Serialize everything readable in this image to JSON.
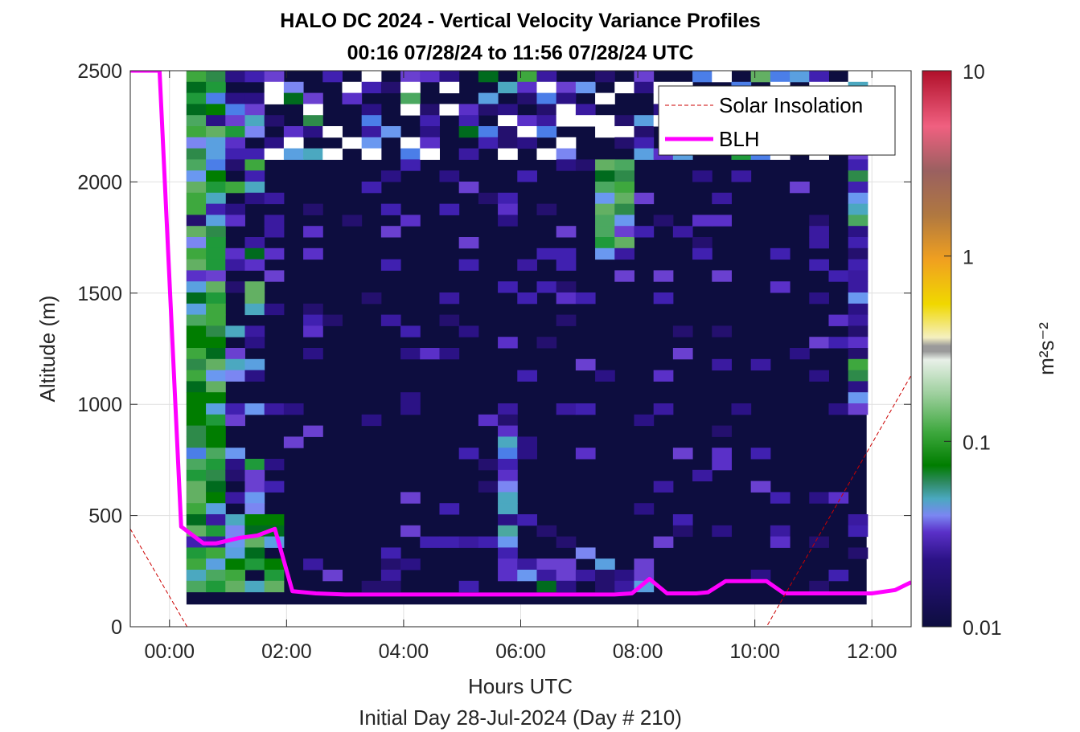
{
  "chart_data": {
    "type": "heatmap",
    "title": "HALO DC 2024 - Vertical Velocity Variance Profiles",
    "subtitle": "00:16 07/28/24 to 11:56 07/28/24  UTC",
    "xlabel": "Hours UTC",
    "xlabel2": "Initial Day 28-Jul-2024 (Day # 210)",
    "ylabel": "Altitude (m)",
    "colorbar_label": "m²s⁻²",
    "x_unit": "hours UTC",
    "xlim": [
      -0.67,
      12.67
    ],
    "ylim": [
      0,
      2500
    ],
    "xticks": [
      0,
      2,
      4,
      6,
      8,
      10,
      12
    ],
    "xtick_labels": [
      "00:00",
      "02:00",
      "04:00",
      "06:00",
      "08:00",
      "10:00",
      "12:00"
    ],
    "yticks": [
      0,
      500,
      1000,
      1500,
      2000,
      2500
    ],
    "ytick_labels": [
      "0",
      "500",
      "1000",
      "1500",
      "2000",
      "2500"
    ],
    "colorbar_scale": "log",
    "colorbar_ticks": [
      0.01,
      0.1,
      1,
      10
    ],
    "colorbar_tick_labels": [
      "0.01",
      "0.1",
      "1",
      "10"
    ],
    "grid": true,
    "legend_position": "top-right",
    "legend": [
      {
        "label": "Solar Insolation",
        "color": "#cc0000",
        "style": "dashed"
      },
      {
        "label": "BLH",
        "color": "#ff00ff",
        "style": "solid"
      }
    ],
    "heatmap_extent": {
      "x": [
        0.29,
        11.91
      ],
      "y": [
        100,
        2500
      ]
    },
    "heatmap_description": "variance field; background ~0.01 m2s-2; elevated (0.05-0.2) near surface 00:30-02:00 and in columns near 06:00, 07:45 and 12:00",
    "series": [
      {
        "name": "BLH",
        "x": [
          -0.67,
          -0.4,
          -0.17,
          0.2,
          0.58,
          0.8,
          1.2,
          1.5,
          1.8,
          2.1,
          2.5,
          3.0,
          4.0,
          5.0,
          6.0,
          7.0,
          7.6,
          7.9,
          8.2,
          8.5,
          9.0,
          9.2,
          9.5,
          10.0,
          10.2,
          10.5,
          11.0,
          11.5,
          12.0,
          12.4,
          12.67
        ],
        "y": [
          2500,
          2500,
          2500,
          450,
          375,
          375,
          400,
          410,
          440,
          160,
          150,
          145,
          145,
          145,
          145,
          145,
          145,
          150,
          215,
          150,
          150,
          155,
          205,
          205,
          205,
          150,
          150,
          150,
          150,
          165,
          200
        ]
      },
      {
        "name": "Solar Insolation",
        "x": [
          -0.67,
          0.3,
          10.2,
          12.67
        ],
        "y": [
          440,
          0,
          0,
          1130
        ]
      }
    ]
  }
}
